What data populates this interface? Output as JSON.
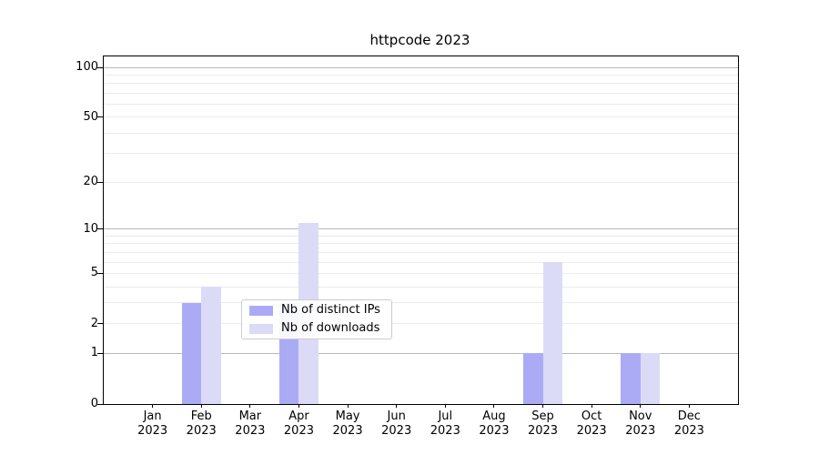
{
  "figure": {
    "title": "httpcode 2023"
  },
  "chart_data": {
    "type": "bar",
    "title": "httpcode 2023",
    "categories": [
      "Jan",
      "Feb",
      "Mar",
      "Apr",
      "May",
      "Jun",
      "Jul",
      "Aug",
      "Sep",
      "Oct",
      "Nov",
      "Dec"
    ],
    "x_tick_labels": [
      [
        "Jan",
        "2023"
      ],
      [
        "Feb",
        "2023"
      ],
      [
        "Mar",
        "2023"
      ],
      [
        "Apr",
        "2023"
      ],
      [
        "May",
        "2023"
      ],
      [
        "Jun",
        "2023"
      ],
      [
        "Jul",
        "2023"
      ],
      [
        "Aug",
        "2023"
      ],
      [
        "Sep",
        "2023"
      ],
      [
        "Oct",
        "2023"
      ],
      [
        "Nov",
        "2023"
      ],
      [
        "Dec",
        "2023"
      ]
    ],
    "series": [
      {
        "name": "Nb of distinct IPs",
        "color": "#ababf5",
        "values": [
          0,
          3,
          0,
          3,
          0,
          0,
          0,
          0,
          1,
          0,
          1,
          0
        ]
      },
      {
        "name": "Nb of downloads",
        "color": "#dbdbf8",
        "values": [
          0,
          4,
          0,
          11,
          0,
          0,
          0,
          0,
          6,
          0,
          1,
          0
        ]
      }
    ],
    "xlabel": "",
    "ylabel": "",
    "yscale": "log(1+v)",
    "ylim": [
      0,
      115
    ],
    "y_tick_values": [
      100,
      50,
      20,
      10,
      5,
      2,
      1,
      0
    ],
    "y_tick_labels": [
      "100",
      "50",
      "20",
      "10",
      "5",
      "2",
      "1",
      "0"
    ],
    "minor_gridline_values": [
      2,
      3,
      4,
      5,
      6,
      7,
      8,
      9,
      20,
      30,
      40,
      50,
      60,
      70,
      80,
      90
    ],
    "major_gridline_values": [
      1,
      10,
      100
    ],
    "grid": "horizontal",
    "legend_position": "inside-lower-center",
    "colors": {
      "minor_grid": "#ebebeb",
      "major_grid": "#b8b8b8",
      "axis": "#000000",
      "background": "#ffffff"
    }
  }
}
